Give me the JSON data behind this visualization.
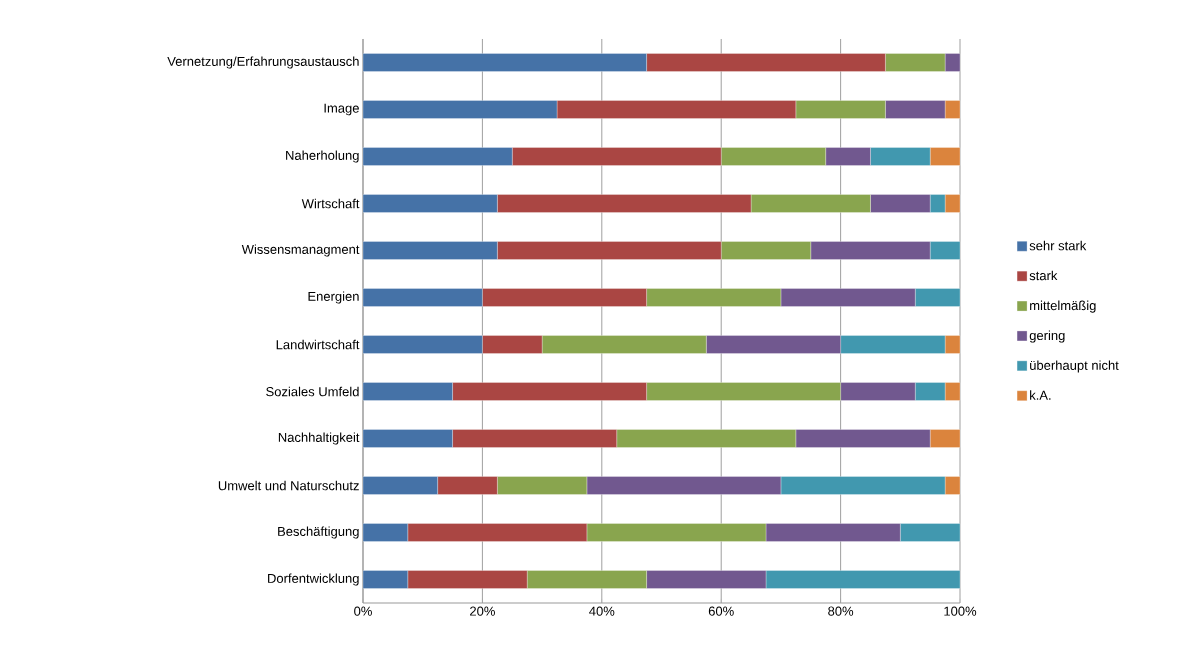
{
  "chart_data": {
    "type": "bar",
    "orientation": "horizontal",
    "stacked": true,
    "categories": [
      "Vernetzung/Erfahrungsaustausch",
      "Image",
      "Naherholung",
      "Wirtschaft",
      "Wissensmanagment",
      "Energien",
      "Landwirtschaft",
      "Soziales Umfeld",
      "Nachhaltigkeit",
      "Umwelt und Naturschutz",
      "Beschäftigung",
      "Dorfentwicklung"
    ],
    "series": [
      {
        "name": "sehr stark",
        "color": "#4572a7",
        "values": [
          47.5,
          32.5,
          25,
          22.5,
          22.5,
          20,
          20,
          15,
          15,
          12.5,
          7.5,
          7.5
        ]
      },
      {
        "name": "stark",
        "color": "#aa4643",
        "values": [
          40,
          40,
          35,
          42.5,
          37.5,
          27.5,
          10,
          32.5,
          27.5,
          10,
          30,
          20
        ]
      },
      {
        "name": "mittelmäßig",
        "color": "#89a54e",
        "values": [
          10,
          15,
          17.5,
          20,
          15,
          22.5,
          27.5,
          32.5,
          30,
          15,
          30,
          20
        ]
      },
      {
        "name": "gering",
        "color": "#71588f",
        "values": [
          2.5,
          10,
          7.5,
          10,
          20,
          22.5,
          22.5,
          12.5,
          22.5,
          32.5,
          22.5,
          20
        ]
      },
      {
        "name": "überhaupt nicht",
        "color": "#4198af",
        "values": [
          0,
          0,
          10,
          2.5,
          5,
          7.5,
          17.5,
          5,
          0,
          27.5,
          10,
          32.5
        ]
      },
      {
        "name": "k.A.",
        "color": "#db843d",
        "values": [
          0,
          2.5,
          5,
          2.5,
          0,
          0,
          2.5,
          2.5,
          5,
          2.5,
          0,
          0
        ]
      }
    ],
    "xlim": [
      0,
      100
    ],
    "xticks": [
      {
        "value": 0,
        "label": "0%"
      },
      {
        "value": 20,
        "label": "20%"
      },
      {
        "value": 40,
        "label": "40%"
      },
      {
        "value": 60,
        "label": "60%"
      },
      {
        "value": 80,
        "label": "80%"
      },
      {
        "value": 100,
        "label": "100%"
      }
    ],
    "grid": "x",
    "legend": "right"
  }
}
